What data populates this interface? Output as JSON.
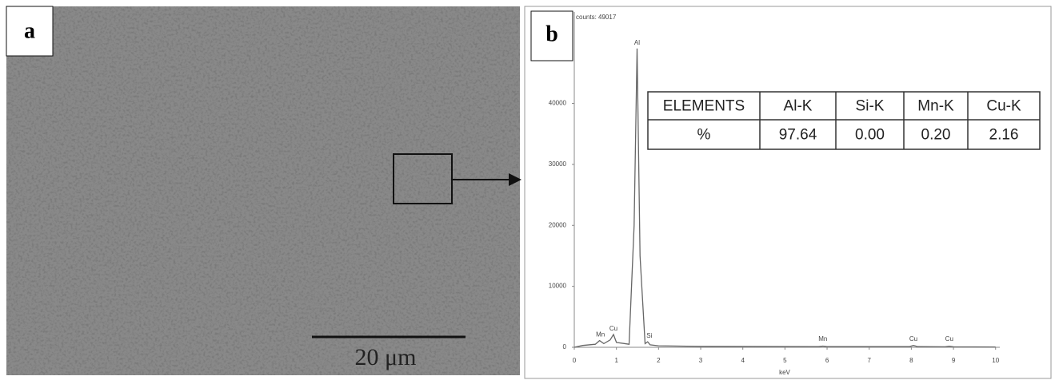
{
  "panels": {
    "a": {
      "label": "a",
      "scale_bar": "20 μm"
    },
    "b": {
      "label": "b"
    }
  },
  "table": {
    "header": [
      "ELEMENTS",
      "Al-K",
      "Si-K",
      "Mn-K",
      "Cu-K"
    ],
    "rows": [
      [
        "%",
        "97.64",
        "0.00",
        "0.20",
        "2.16"
      ]
    ]
  },
  "chart_data": {
    "type": "line",
    "title": "counts: 49017",
    "x_label": "keV",
    "x": [
      0,
      0.2,
      0.5,
      0.6,
      0.7,
      0.85,
      0.93,
      1.0,
      1.3,
      1.42,
      1.49,
      1.56,
      1.68,
      1.74,
      1.8,
      2.0,
      3,
      5.8,
      5.9,
      6.0,
      7.95,
      8.05,
      8.15,
      8.8,
      8.9,
      9.0,
      10
    ],
    "values": [
      0,
      300,
      500,
      1100,
      600,
      1200,
      2100,
      800,
      500,
      20000,
      49017,
      15000,
      600,
      900,
      400,
      250,
      150,
      100,
      200,
      100,
      100,
      300,
      100,
      80,
      180,
      80,
      50
    ],
    "color": "#666666",
    "annotations": [
      {
        "text": "Mn",
        "x": 0.62
      },
      {
        "text": "Cu",
        "x": 0.93
      },
      {
        "text": "Al",
        "x": 1.49
      },
      {
        "text": "Si",
        "x": 1.78
      },
      {
        "text": "Mn",
        "x": 5.9
      },
      {
        "text": "Cu",
        "x": 8.05
      },
      {
        "text": "Cu",
        "x": 8.9
      }
    ],
    "xlim": [
      0,
      10.1
    ],
    "ylim": [
      0,
      55000
    ],
    "xticks": [
      0,
      1,
      2,
      3,
      4,
      5,
      6,
      7,
      8,
      9,
      10
    ],
    "yticks": [
      0,
      10000,
      20000,
      30000,
      40000
    ]
  }
}
